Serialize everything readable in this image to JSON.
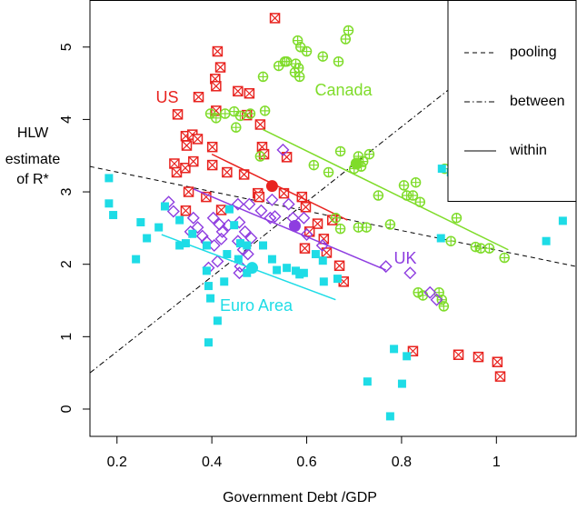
{
  "chart_data": {
    "type": "scatter",
    "x_label": "Government Debt /GDP",
    "y_label": [
      "HLW",
      "estimate",
      "of R*"
    ],
    "xlim": [
      0.143,
      1.168
    ],
    "ylim": [
      -0.377,
      5.65
    ],
    "xticks": [
      0.2,
      0.4,
      0.6,
      0.8,
      1.0
    ],
    "yticks": [
      0,
      1,
      2,
      3,
      4,
      5
    ],
    "reference_lines": [
      {
        "name": "pooling",
        "style": "dashed",
        "x": [
          0.143,
          1.168
        ],
        "y": [
          3.35,
          1.97
        ]
      },
      {
        "name": "between",
        "style": "dashdot",
        "x": [
          0.143,
          0.897
        ],
        "y": [
          0.5,
          4.4
        ]
      }
    ],
    "within_fit": {
      "name": "within",
      "style": "solid"
    },
    "series": [
      {
        "name": "US",
        "color": "#e8231f",
        "marker": "square-x",
        "x": [
          0.533,
          0.412,
          0.418,
          0.407,
          0.409,
          0.455,
          0.479,
          0.372,
          0.328,
          0.409,
          0.474,
          0.502,
          0.345,
          0.359,
          0.37,
          0.347,
          0.401,
          0.321,
          0.326,
          0.344,
          0.361,
          0.401,
          0.468,
          0.432,
          0.506,
          0.51,
          0.558,
          0.351,
          0.388,
          0.345,
          0.42,
          0.497,
          0.5,
          0.552,
          0.59,
          0.598,
          0.623,
          0.606,
          0.636,
          0.654,
          0.596,
          0.642,
          0.669,
          0.678,
          0.824,
          0.92,
          0.962,
          1.002,
          1.008
        ],
        "y": [
          5.4,
          4.94,
          4.72,
          4.56,
          4.46,
          4.39,
          4.36,
          4.31,
          4.07,
          4.12,
          4.06,
          3.93,
          3.77,
          3.79,
          3.73,
          3.64,
          3.62,
          3.39,
          3.27,
          3.33,
          3.42,
          3.37,
          3.24,
          3.27,
          3.62,
          3.52,
          3.48,
          3.0,
          2.93,
          2.74,
          2.75,
          2.98,
          2.93,
          2.98,
          2.93,
          2.79,
          2.56,
          2.45,
          2.35,
          2.61,
          2.22,
          2.16,
          1.98,
          1.76,
          0.8,
          0.75,
          0.72,
          0.65,
          0.45
        ],
        "mean": {
          "x": 0.527,
          "y": 3.08
        },
        "fit_x": [
          0.4,
          0.686
        ],
        "fit_y": [
          3.52,
          2.61
        ]
      },
      {
        "name": "Canada",
        "color": "#7fdc2a",
        "marker": "circle-plus",
        "x": [
          0.581,
          0.587,
          0.6,
          0.554,
          0.577,
          0.583,
          0.575,
          0.585,
          0.634,
          0.667,
          0.682,
          0.688,
          0.508,
          0.541,
          0.558,
          0.397,
          0.409,
          0.428,
          0.447,
          0.46,
          0.481,
          0.512,
          0.451,
          0.502,
          0.671,
          0.709,
          0.719,
          0.715,
          0.7,
          0.732,
          0.615,
          0.646,
          0.671,
          0.661,
          0.709,
          0.726,
          0.776,
          0.751,
          0.811,
          0.824,
          0.839,
          0.916,
          0.904,
          0.956,
          0.967,
          0.985,
          1.017,
          0.835,
          0.845,
          0.879,
          0.885,
          0.889,
          0.83,
          0.805,
          0.891
        ],
        "y": [
          5.09,
          5.0,
          4.94,
          4.8,
          4.77,
          4.71,
          4.65,
          4.59,
          4.87,
          4.8,
          5.11,
          5.23,
          4.59,
          4.74,
          4.8,
          4.08,
          4.02,
          4.08,
          4.11,
          4.05,
          4.08,
          4.12,
          3.89,
          3.49,
          3.56,
          3.49,
          3.42,
          3.35,
          3.32,
          3.52,
          3.37,
          3.27,
          2.49,
          2.64,
          2.51,
          2.51,
          2.55,
          2.95,
          2.95,
          2.95,
          2.86,
          2.64,
          2.32,
          2.24,
          2.22,
          2.22,
          2.09,
          1.61,
          1.57,
          1.61,
          1.51,
          1.42,
          3.13,
          3.09,
          3.32
        ],
        "mean": {
          "x": 0.705,
          "y": 3.39
        },
        "fit_x": [
          0.508,
          1.025
        ],
        "fit_y": [
          3.86,
          2.2
        ]
      },
      {
        "name": "UK",
        "color": "#8e3de0",
        "marker": "diamond",
        "x": [
          0.55,
          0.309,
          0.319,
          0.361,
          0.37,
          0.355,
          0.38,
          0.403,
          0.416,
          0.422,
          0.435,
          0.458,
          0.389,
          0.405,
          0.42,
          0.455,
          0.466,
          0.476,
          0.46,
          0.458,
          0.47,
          0.483,
          0.393,
          0.412,
          0.523,
          0.533,
          0.504,
          0.479,
          0.527,
          0.562,
          0.6,
          0.633,
          0.594,
          0.767,
          0.818,
          0.86,
          0.874,
          0.571,
          0.455
        ],
        "y": [
          3.58,
          2.86,
          2.73,
          2.64,
          2.51,
          2.45,
          2.39,
          2.64,
          2.55,
          2.45,
          2.54,
          2.58,
          2.31,
          2.26,
          2.35,
          2.32,
          2.2,
          2.14,
          1.97,
          1.88,
          2.45,
          2.36,
          1.95,
          2.04,
          2.64,
          2.66,
          2.74,
          2.83,
          2.89,
          2.83,
          2.41,
          2.26,
          2.64,
          1.97,
          1.88,
          1.61,
          1.51,
          2.64,
          2.83
        ],
        "mean": {
          "x": 0.575,
          "y": 2.53
        },
        "fit_x": [
          0.361,
          0.767
        ],
        "fit_y": [
          3.04,
          1.92
        ]
      },
      {
        "name": "Euro Area",
        "color": "#1edce6",
        "marker": "square",
        "x": [
          0.183,
          0.183,
          0.192,
          0.24,
          0.25,
          0.263,
          0.288,
          0.301,
          0.332,
          0.345,
          0.359,
          0.389,
          0.389,
          0.393,
          0.397,
          0.412,
          0.393,
          0.332,
          0.437,
          0.447,
          0.46,
          0.474,
          0.456,
          0.474,
          0.432,
          0.537,
          0.558,
          0.577,
          0.585,
          0.619,
          0.634,
          0.636,
          0.665,
          0.728,
          0.784,
          0.811,
          0.801,
          0.776,
          0.885,
          0.904,
          0.883,
          1.105,
          1.14,
          0.508,
          0.527,
          0.594,
          0.426
        ],
        "y": [
          3.19,
          2.84,
          2.68,
          2.07,
          2.58,
          2.36,
          2.51,
          2.8,
          2.61,
          2.29,
          2.42,
          2.26,
          1.91,
          1.7,
          1.53,
          1.22,
          0.92,
          2.26,
          2.76,
          2.54,
          2.29,
          2.26,
          2.07,
          1.88,
          2.14,
          1.92,
          1.95,
          1.91,
          1.86,
          2.14,
          2.05,
          1.76,
          1.8,
          0.38,
          0.83,
          0.73,
          0.35,
          -0.1,
          3.32,
          3.27,
          2.36,
          2.32,
          2.6,
          2.26,
          2.07,
          1.88,
          1.76
        ],
        "mean": {
          "x": 0.485,
          "y": 1.95
        },
        "fit_x": [
          0.294,
          0.661
        ],
        "fit_y": [
          2.41,
          1.51
        ]
      }
    ]
  }
}
